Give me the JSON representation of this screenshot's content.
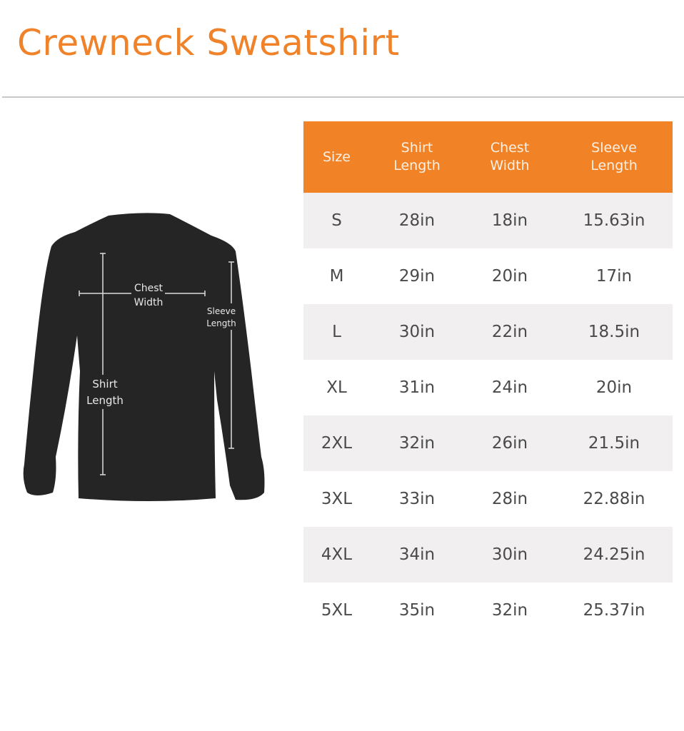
{
  "title": "Crewneck Sweatshirt",
  "colors": {
    "accent": "#F18226",
    "row_alt": "#f1eff0",
    "shirt": "#252525"
  },
  "diagram": {
    "chest_label": [
      "Chest",
      "Width"
    ],
    "sleeve_label": [
      "Sleeve",
      "Length"
    ],
    "shirt_label": [
      "Shirt",
      "Length"
    ]
  },
  "table": {
    "headers": [
      [
        "Size"
      ],
      [
        "Shirt",
        "Length"
      ],
      [
        "Chest",
        "Width"
      ],
      [
        "Sleeve",
        "Length"
      ]
    ],
    "rows": [
      [
        "S",
        "28in",
        "18in",
        "15.63in"
      ],
      [
        "M",
        "29in",
        "20in",
        "17in"
      ],
      [
        "L",
        "30in",
        "22in",
        "18.5in"
      ],
      [
        "XL",
        "31in",
        "24in",
        "20in"
      ],
      [
        "2XL",
        "32in",
        "26in",
        "21.5in"
      ],
      [
        "3XL",
        "33in",
        "28in",
        "22.88in"
      ],
      [
        "4XL",
        "34in",
        "30in",
        "24.25in"
      ],
      [
        "5XL",
        "35in",
        "32in",
        "25.37in"
      ]
    ]
  }
}
